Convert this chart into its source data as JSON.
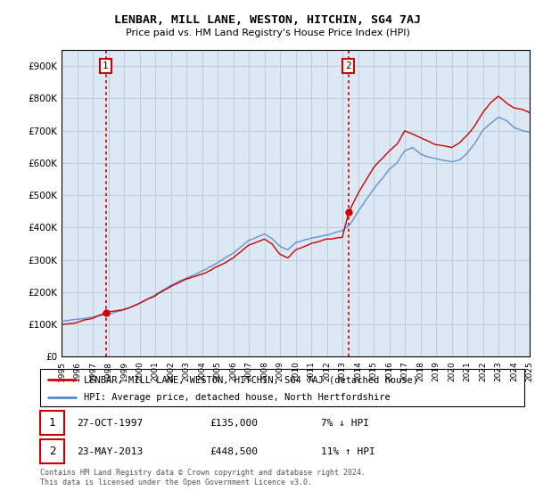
{
  "title": "LENBAR, MILL LANE, WESTON, HITCHIN, SG4 7AJ",
  "subtitle": "Price paid vs. HM Land Registry's House Price Index (HPI)",
  "ylim": [
    0,
    950000
  ],
  "yticks": [
    0,
    100000,
    200000,
    300000,
    400000,
    500000,
    600000,
    700000,
    800000,
    900000
  ],
  "ytick_labels": [
    "£0",
    "£100K",
    "£200K",
    "£300K",
    "£400K",
    "£500K",
    "£600K",
    "£700K",
    "£800K",
    "£900K"
  ],
  "sale1_price": 135000,
  "sale1_year": 1997.83,
  "sale1_date_str": "27-OCT-1997",
  "sale1_amount_str": "£135,000",
  "sale1_hpi_str": "7% ↓ HPI",
  "sale2_price": 448500,
  "sale2_year": 2013.38,
  "sale2_date_str": "23-MAY-2013",
  "sale2_amount_str": "£448,500",
  "sale2_hpi_str": "11% ↑ HPI",
  "property_color": "#cc0000",
  "hpi_color": "#5588cc",
  "chart_bg": "#dce9f5",
  "legend_property": "LENBAR, MILL LANE, WESTON, HITCHIN, SG4 7AJ (detached house)",
  "legend_hpi": "HPI: Average price, detached house, North Hertfordshire",
  "footer": "Contains HM Land Registry data © Crown copyright and database right 2024.\nThis data is licensed under the Open Government Licence v3.0.",
  "background_color": "#ffffff",
  "grid_color": "#bbccdd",
  "xlim_start": 1995,
  "xlim_end": 2025
}
